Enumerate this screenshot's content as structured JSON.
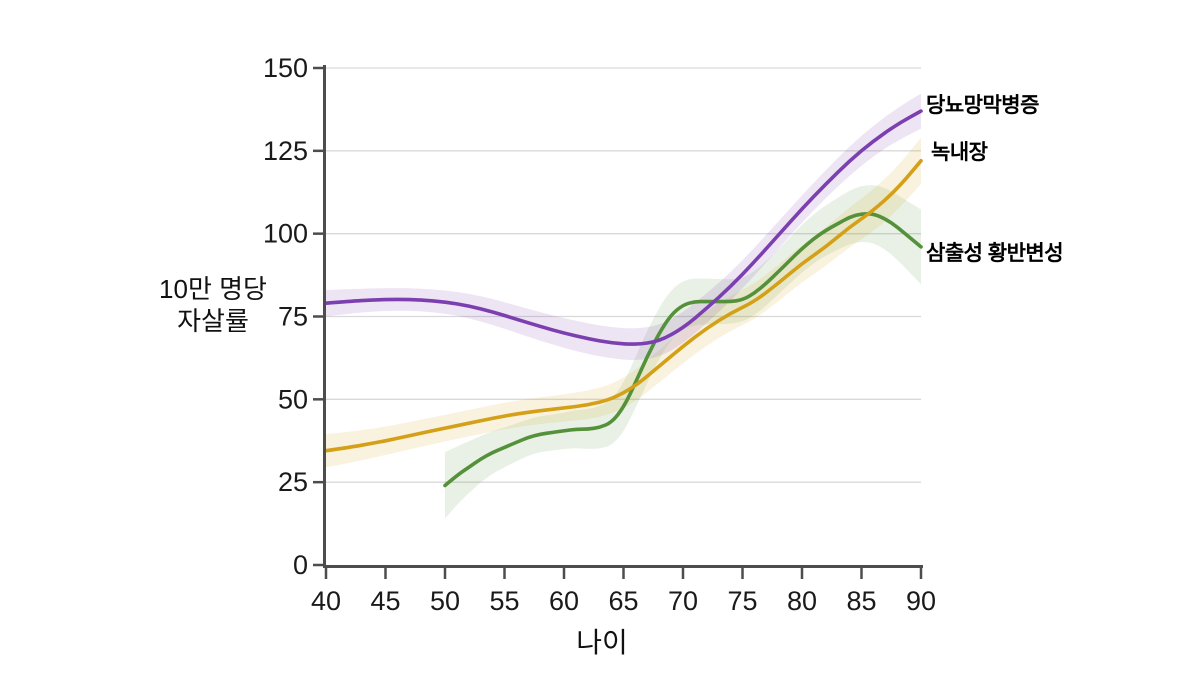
{
  "chart_data": {
    "type": "line",
    "xlabel": "나이",
    "ylabel_line1": "10만 명당",
    "ylabel_line2": "자살률",
    "xlim": [
      40,
      90
    ],
    "ylim": [
      0,
      150
    ],
    "xticks": [
      40,
      45,
      50,
      55,
      60,
      65,
      70,
      75,
      80,
      85,
      90
    ],
    "yticks": [
      0,
      25,
      50,
      75,
      100,
      125,
      150
    ],
    "grid": "horizontal",
    "legend_position": "right-of-line-ends",
    "colors": {
      "axis": "#4d4d4d",
      "grid": "#d9d9d9",
      "tick_label": "#1a1a1a"
    },
    "series": [
      {
        "name": "삼출성 황반변성",
        "color": "#55913a",
        "band_color": "rgba(85,145,58,0.13)",
        "x": [
          50,
          51,
          52,
          53,
          54,
          55,
          56,
          57,
          58,
          59,
          60,
          61,
          62,
          63,
          64,
          65,
          66,
          67,
          68,
          69,
          70,
          71,
          72,
          73,
          74,
          75,
          76,
          77,
          78,
          79,
          80,
          81,
          82,
          83,
          84,
          85,
          86,
          87,
          88,
          89,
          90
        ],
        "y": [
          24,
          27,
          29.5,
          32,
          34,
          35.5,
          37,
          38.5,
          39.5,
          40,
          40.5,
          41,
          41,
          41.5,
          43,
          47.5,
          55,
          63,
          70,
          75.5,
          78.5,
          79.5,
          79.5,
          79.5,
          79.5,
          80,
          82,
          85,
          88.5,
          92,
          95.5,
          98.5,
          101,
          103,
          105,
          106,
          106,
          104.5,
          102,
          99,
          96
        ],
        "band": [
          10,
          8.8,
          7.8,
          7,
          6.4,
          6,
          5.7,
          5.5,
          5.4,
          5.4,
          5.5,
          5.7,
          6,
          6.4,
          6.9,
          7.4,
          7.7,
          7.8,
          7.7,
          7.5,
          7.3,
          7.1,
          6.9,
          6.8,
          6.7,
          6.6,
          6.6,
          6.7,
          6.8,
          7,
          7.2,
          7.4,
          7.6,
          7.8,
          8.1,
          8.4,
          8.8,
          9.3,
          9.8,
          10.5,
          11.3
        ]
      },
      {
        "name": "녹내장",
        "color": "#d4a017",
        "band_color": "rgba(212,160,23,0.14)",
        "x": [
          40,
          42,
          44,
          46,
          48,
          50,
          52,
          54,
          56,
          58,
          60,
          62,
          64,
          66,
          68,
          70,
          72,
          74,
          76,
          78,
          80,
          82,
          84,
          86,
          88,
          90
        ],
        "y": [
          34.5,
          35.5,
          36.8,
          38.2,
          39.8,
          41.3,
          42.8,
          44.3,
          45.6,
          46.6,
          47.4,
          48.3,
          50,
          54,
          60,
          66,
          71.5,
          76,
          79.5,
          85,
          91,
          96,
          102,
          107,
          113.5,
          122
        ],
        "band": [
          5,
          4.7,
          4.4,
          4.2,
          4.1,
          4,
          4,
          4,
          4,
          4,
          4.1,
          4.3,
          4.5,
          4.7,
          4.9,
          5.1,
          5.2,
          5.3,
          5.4,
          5.5,
          5.6,
          5.8,
          6,
          6.3,
          6.6,
          7
        ]
      },
      {
        "name": "당뇨망막병증",
        "color": "#7c3fb0",
        "band_color": "rgba(124,63,176,0.14)",
        "x": [
          40,
          42,
          44,
          46,
          48,
          50,
          52,
          54,
          56,
          58,
          60,
          62,
          64,
          66,
          68,
          70,
          72,
          74,
          76,
          78,
          80,
          82,
          84,
          86,
          88,
          90
        ],
        "y": [
          79,
          79.6,
          80,
          80.2,
          80,
          79.4,
          78.2,
          76.4,
          74.2,
          72,
          70,
          68.3,
          67,
          66.5,
          67.5,
          71.5,
          77.5,
          84,
          91.5,
          99.5,
          107.5,
          115,
          122,
          128,
          133,
          137
        ],
        "band": [
          4,
          3.7,
          3.5,
          3.4,
          3.4,
          3.5,
          3.7,
          3.9,
          4.1,
          4.3,
          4.5,
          4.6,
          4.7,
          4.8,
          4.8,
          4.7,
          4.5,
          4.3,
          4.2,
          4.1,
          4.1,
          4.2,
          4.4,
          4.6,
          4.9,
          5.3
        ]
      }
    ]
  }
}
